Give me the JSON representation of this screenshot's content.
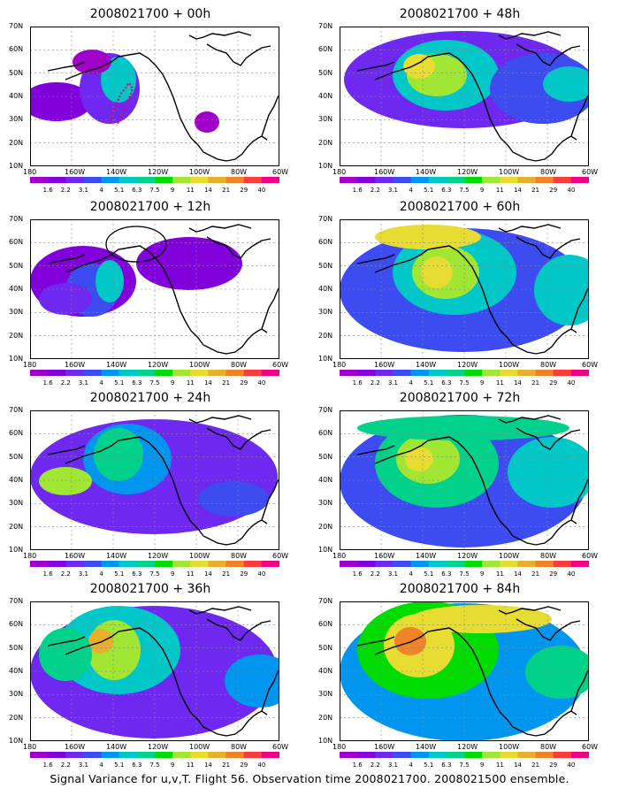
{
  "panels": [
    {
      "title": "2008021700 + 00h"
    },
    {
      "title": "2008021700 + 48h"
    },
    {
      "title": "2008021700 + 12h"
    },
    {
      "title": "2008021700 + 60h"
    },
    {
      "title": "2008021700 + 24h"
    },
    {
      "title": "2008021700 + 72h"
    },
    {
      "title": "2008021700 + 36h"
    },
    {
      "title": "2008021700 + 84h"
    }
  ],
  "lat_labels": [
    "70N",
    "60N",
    "50N",
    "40N",
    "30N",
    "20N",
    "10N"
  ],
  "lon_labels": [
    "180",
    "160W",
    "140W",
    "120W",
    "100W",
    "80W",
    "60W"
  ],
  "colorbar": {
    "labels": [
      "1.6",
      "2.2",
      "3.1",
      "4",
      "5.1",
      "6.3",
      "7.5",
      "9",
      "11",
      "14",
      "21",
      "29",
      "40"
    ],
    "colors": [
      "#a000c8",
      "#8200dc",
      "#6e28f0",
      "#3c4cf0",
      "#0096f0",
      "#00c8c8",
      "#00d28c",
      "#00dc00",
      "#a0e632",
      "#e6dc32",
      "#e6af2d",
      "#f08228",
      "#fa3c3c",
      "#f00082"
    ]
  },
  "footer": "Signal Variance for u,v,T. Flight 56. Observation time 2008021700. 2008021500 ensemble."
}
